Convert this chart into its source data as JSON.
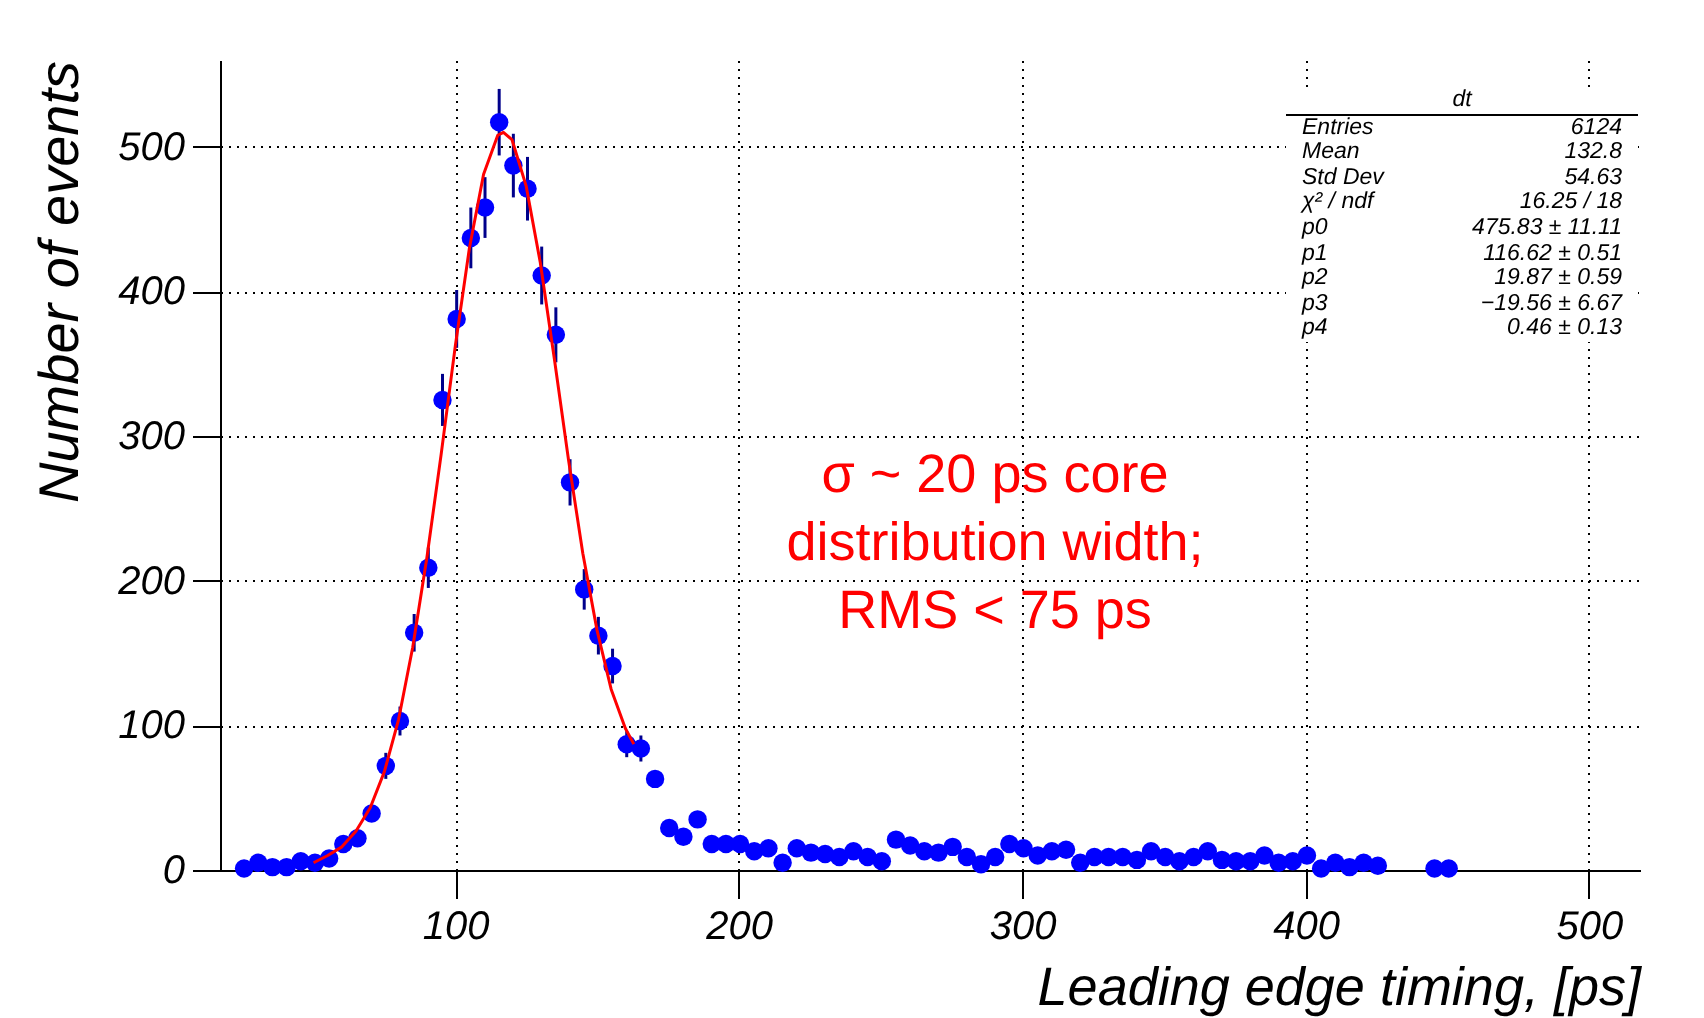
{
  "chart_data": {
    "type": "scatter",
    "xlabel": "Leading edge timing, [ps]",
    "ylabel": "Number of events",
    "xlim": [
      17,
      518
    ],
    "ylim": [
      0,
      560
    ],
    "xticks": [
      100,
      200,
      300,
      400,
      500
    ],
    "yticks": [
      0,
      100,
      200,
      300,
      400,
      500
    ],
    "grid": true,
    "series": [
      {
        "color": "#0000ff",
        "marker": "circle",
        "x": [
          25.5,
          30.5,
          35.5,
          40.5,
          45.5,
          50.5,
          55.5,
          60.5,
          65.5,
          70.5,
          75.5,
          80.5,
          85.5,
          90.5,
          95.5,
          100.5,
          105.5,
          110.5,
          115.5,
          120.5,
          125.5,
          130.5,
          135.5,
          140.5,
          145.5,
          150.5,
          155.5,
          160.5,
          165.5,
          170.5,
          175.5,
          180.5,
          185.5,
          190.5,
          195.5,
          200.5,
          205.5,
          210.5,
          215.5,
          220.5,
          225.5,
          230.5,
          235.5,
          240.5,
          245.5,
          250.5,
          255.5,
          260.5,
          265.5,
          270.5,
          275.5,
          280.5,
          285.5,
          290.5,
          295.5,
          300.5,
          305.5,
          310.5,
          315.5,
          320.5,
          325.5,
          330.5,
          335.5,
          340.5,
          345.5,
          350.5,
          355.5,
          360.5,
          365.5,
          370.5,
          375.5,
          380.5,
          385.5,
          390.5,
          395.5,
          400.5,
          405.5,
          410.5,
          415.5,
          420.5,
          425.5,
          445.5,
          450.5
        ],
        "values": [
          1,
          5,
          2,
          2,
          6,
          5,
          8,
          18,
          22,
          39,
          72,
          103,
          164,
          209,
          325,
          381,
          437,
          458,
          517,
          487,
          471,
          411,
          370,
          268,
          194,
          162,
          141,
          87,
          84,
          63,
          29,
          23,
          35,
          18,
          18,
          18,
          13,
          15,
          5,
          15,
          12,
          11,
          9,
          13,
          9,
          6,
          21,
          17,
          13,
          12,
          16,
          9,
          4,
          9,
          18,
          15,
          10,
          13,
          14,
          5,
          9,
          9,
          9,
          7,
          13,
          9,
          6,
          9,
          13,
          7,
          6,
          6,
          10,
          5,
          6,
          10,
          1,
          5,
          2,
          5,
          3,
          1,
          1
        ],
        "errors": [
          null,
          null,
          null,
          null,
          null,
          null,
          null,
          null,
          null,
          null,
          9,
          10,
          13,
          14,
          18,
          20,
          21,
          21,
          23,
          22,
          22,
          20,
          19,
          16,
          14,
          13,
          12,
          9,
          9,
          null,
          null,
          null,
          null,
          null,
          null,
          null,
          null,
          null,
          null,
          null,
          null,
          null,
          null,
          null,
          null,
          null,
          null,
          null,
          null,
          null,
          null,
          null,
          null,
          null,
          null,
          null,
          null,
          null,
          null,
          null,
          null,
          null,
          null,
          null,
          null,
          null,
          null,
          null,
          null,
          null,
          null,
          null,
          null,
          null,
          null,
          null,
          null,
          null,
          null,
          null,
          null,
          null,
          null
        ]
      },
      {
        "type": "line",
        "marker": "none",
        "color": "#ff0000",
        "x": [
          50,
          55,
          60,
          65,
          70,
          75,
          80,
          85,
          90,
          95,
          100,
          105,
          110,
          115,
          117,
          120,
          125,
          130,
          135,
          140,
          145,
          150,
          155,
          160,
          163
        ],
        "values": [
          5,
          10,
          16,
          27,
          43,
          68,
          104,
          154,
          216,
          287,
          362,
          430,
          481,
          508,
          510,
          505,
          473,
          420,
          353,
          283,
          219,
          166,
          125,
          98,
          87
        ]
      }
    ],
    "annotations": [
      "σ ~ 20 ps core\ndistribution width;\nRMS < 75 ps",
      "dt",
      "Entries  6124",
      "Mean  132.8",
      "Std Dev  54.63",
      "χ² / ndf  16.25 / 18",
      "p0  475.83 ± 11.11",
      "p1  116.62 ± 0.51",
      "p2  19.87 ± 0.59",
      "p3  −19.56 ± 6.67",
      "p4  0.46 ± 0.13"
    ]
  }
}
